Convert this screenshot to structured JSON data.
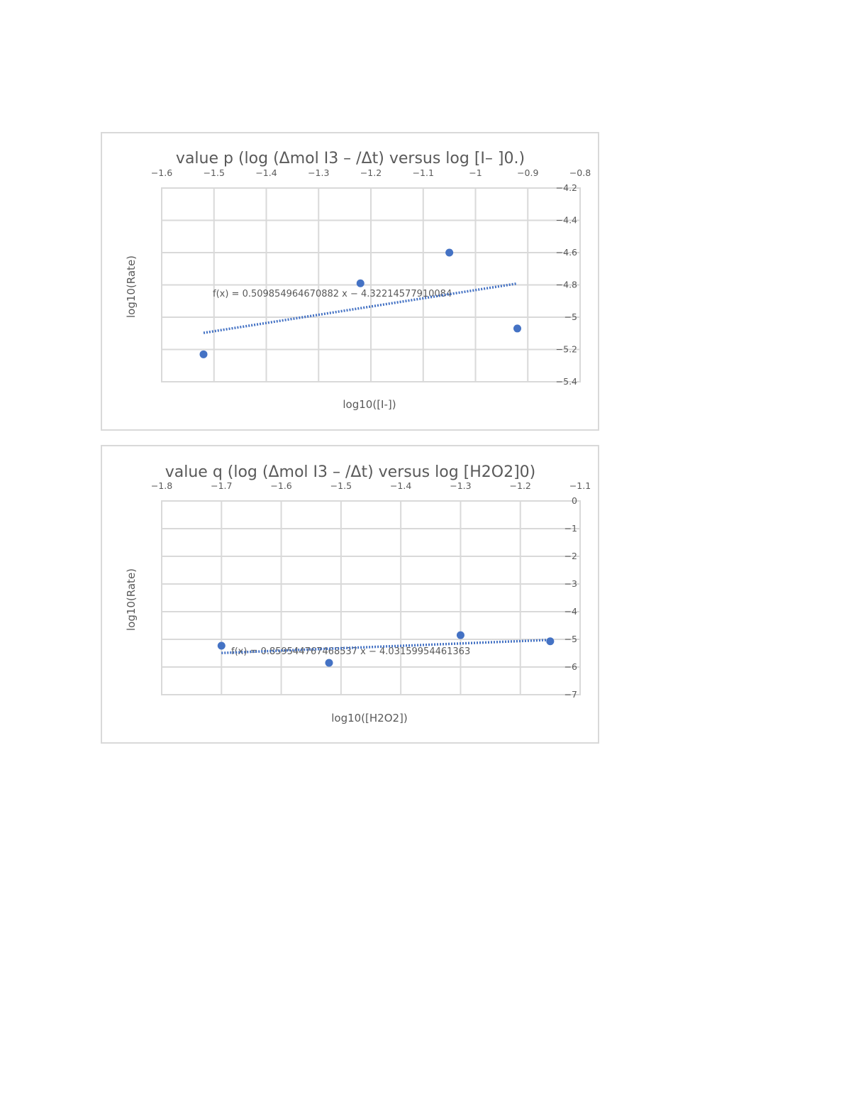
{
  "chart_data": [
    {
      "type": "scatter",
      "title": "value p (log (Δmol I3 – /Δt) versus log [I– ]0.)",
      "xlabel": "log10([I-])",
      "ylabel": "log10(Rate)",
      "xlim": [
        -1.6,
        -0.8
      ],
      "ylim": [
        -5.4,
        -4.2
      ],
      "xticks": [
        "-1.6",
        "-1.5",
        "-1.4",
        "-1.3",
        "-1.2",
        "-1.1",
        "-1",
        "-0.9",
        "-0.8"
      ],
      "yticks": [
        "-4.2",
        "-4.4",
        "-4.6",
        "-4.8",
        "-5",
        "-5.2",
        "-5.4"
      ],
      "grid": true,
      "x_axis_position": "top",
      "y_axis_position": "right",
      "series": [
        {
          "x": [
            -1.52,
            -1.22,
            -1.05,
            -0.92
          ],
          "y": [
            -5.23,
            -4.79,
            -4.6,
            -5.07
          ],
          "color": "#4472c4"
        }
      ],
      "trendline": {
        "type": "linear",
        "slope": 0.509854964670882,
        "intercept": -4.32214577910084,
        "x_range": [
          -1.52,
          -0.92
        ],
        "equation": "f(x) = 0.509854964670882 x − 4.32214577910084"
      }
    },
    {
      "type": "scatter",
      "title": "value q (log (Δmol I3 – /Δt) versus log [H2O2]0)",
      "xlabel": "log10([H2O2])",
      "ylabel": "log10(Rate)",
      "xlim": [
        -1.8,
        -1.1
      ],
      "ylim": [
        -7,
        0
      ],
      "xticks": [
        "-1.8",
        "-1.7",
        "-1.6",
        "-1.5",
        "-1.4",
        "-1.3",
        "-1.2",
        "-1.1"
      ],
      "yticks": [
        "0",
        "-1",
        "-2",
        "-3",
        "-4",
        "-5",
        "-6",
        "-7"
      ],
      "grid": true,
      "x_axis_position": "top",
      "y_axis_position": "right",
      "series": [
        {
          "x": [
            -1.7,
            -1.52,
            -1.3,
            -1.15
          ],
          "y": [
            -5.23,
            -5.85,
            -4.85,
            -5.07
          ],
          "color": "#4472c4"
        }
      ],
      "trendline": {
        "type": "linear",
        "slope": 0.859544767468537,
        "intercept": -4.03159954461363,
        "x_range": [
          -1.7,
          -1.15
        ],
        "equation": "f(x) = 0.859544767468537 x − 4.03159954461363"
      }
    }
  ]
}
